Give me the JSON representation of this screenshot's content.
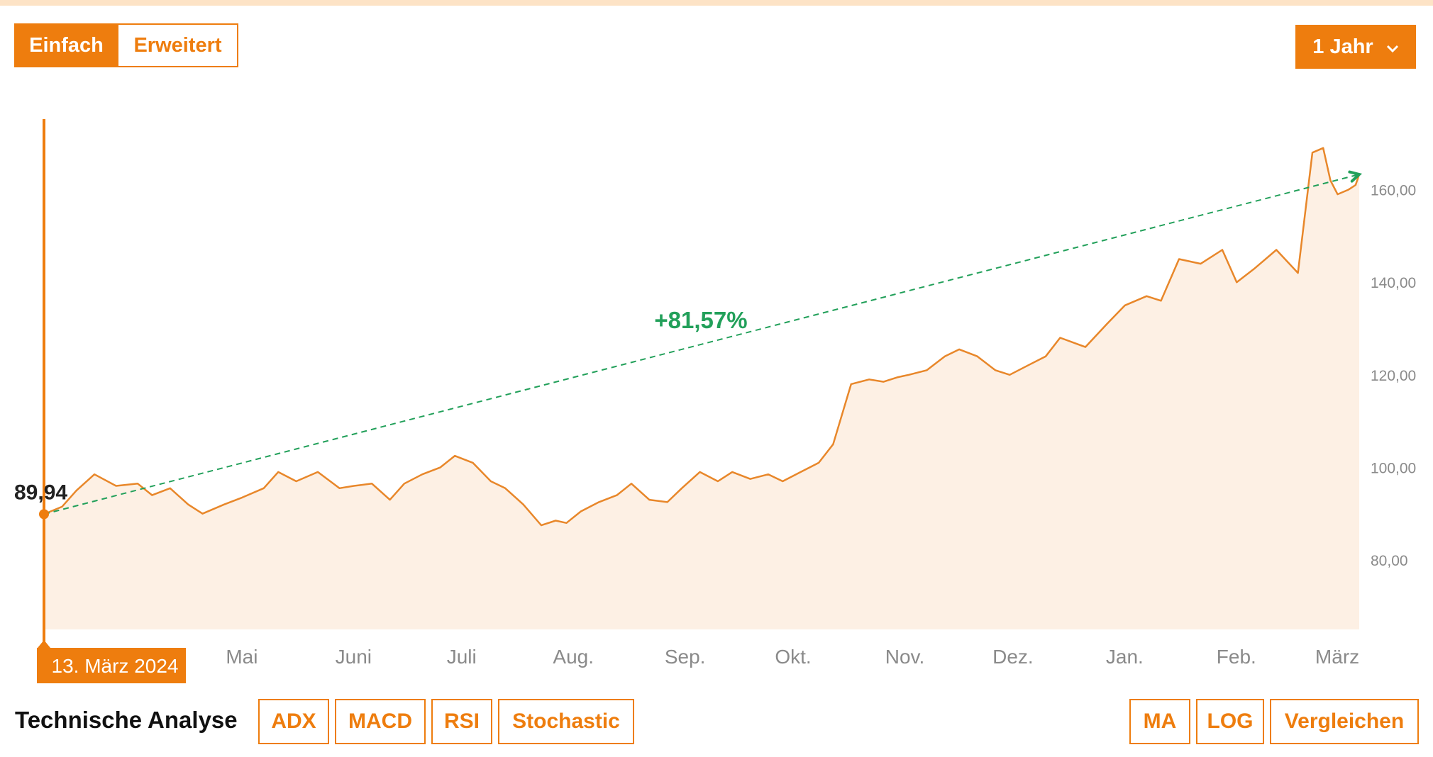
{
  "controls": {
    "mode_simple": "Einfach",
    "mode_advanced": "Erweitert",
    "period": "1 Jahr",
    "technical_label": "Technische Analyse",
    "indicators": [
      "ADX",
      "MACD",
      "RSI",
      "Stochastic"
    ],
    "tools": [
      "MA",
      "LOG",
      "Vergleichen"
    ]
  },
  "colors": {
    "accent": "#ee7d0e",
    "line": "#e8872a",
    "fill": "#fdf0e4",
    "positive": "#22a05a"
  },
  "chart_data": {
    "type": "area",
    "start_date": "13. März 2024",
    "start_value_label": "89,94",
    "change_label": "+81,57%",
    "y_ticks": [
      "80,00",
      "100,00",
      "120,00",
      "140,00",
      "160,00"
    ],
    "ylim": [
      65,
      178
    ],
    "x_month_labels": [
      "Mai",
      "Juni",
      "Juli",
      "Aug.",
      "Sep.",
      "Okt.",
      "Nov.",
      "Dez.",
      "Jan.",
      "Feb.",
      "März"
    ],
    "x": [
      "2024-03-13",
      "2024-03-18",
      "2024-03-22",
      "2024-03-27",
      "2024-04-02",
      "2024-04-08",
      "2024-04-12",
      "2024-04-17",
      "2024-04-22",
      "2024-04-26",
      "2024-05-02",
      "2024-05-07",
      "2024-05-13",
      "2024-05-17",
      "2024-05-22",
      "2024-05-28",
      "2024-06-03",
      "2024-06-07",
      "2024-06-12",
      "2024-06-17",
      "2024-06-21",
      "2024-06-26",
      "2024-07-01",
      "2024-07-05",
      "2024-07-10",
      "2024-07-15",
      "2024-07-19",
      "2024-07-24",
      "2024-07-29",
      "2024-08-02",
      "2024-08-05",
      "2024-08-09",
      "2024-08-14",
      "2024-08-19",
      "2024-08-23",
      "2024-08-28",
      "2024-09-02",
      "2024-09-06",
      "2024-09-11",
      "2024-09-16",
      "2024-09-20",
      "2024-09-25",
      "2024-09-30",
      "2024-10-04",
      "2024-10-09",
      "2024-10-14",
      "2024-10-18",
      "2024-10-23",
      "2024-10-28",
      "2024-11-01",
      "2024-11-05",
      "2024-11-08",
      "2024-11-13",
      "2024-11-18",
      "2024-11-22",
      "2024-11-27",
      "2024-12-02",
      "2024-12-06",
      "2024-12-11",
      "2024-12-16",
      "2024-12-20",
      "2024-12-27",
      "2025-01-02",
      "2025-01-07",
      "2025-01-13",
      "2025-01-17",
      "2025-01-22",
      "2025-01-28",
      "2025-02-03",
      "2025-02-07",
      "2025-02-12",
      "2025-02-18",
      "2025-02-24",
      "2025-02-28",
      "2025-03-03",
      "2025-03-05",
      "2025-03-07",
      "2025-03-10",
      "2025-03-12",
      "2025-03-13"
    ],
    "y": [
      89.9,
      91.5,
      95,
      98.5,
      96,
      96.5,
      94,
      95.5,
      92,
      90,
      92,
      93.5,
      95.5,
      99,
      97,
      99,
      95.5,
      96,
      96.5,
      93,
      96.5,
      98.5,
      100,
      102.5,
      101,
      97,
      95.5,
      92,
      87.5,
      88.5,
      88,
      90.5,
      92.5,
      94,
      96.5,
      93,
      92.5,
      95.5,
      99,
      97,
      99,
      97.5,
      98.5,
      97,
      99,
      101,
      105,
      118,
      119,
      118.5,
      119.5,
      120,
      121,
      124,
      125.5,
      124,
      121,
      120,
      122,
      124,
      128,
      126,
      131,
      135,
      137,
      136,
      145,
      144,
      147,
      140,
      143,
      147,
      142,
      168,
      169,
      162,
      159,
      160,
      161,
      163.3
    ],
    "annotations": [
      "+81,57%",
      "89,94",
      "13. März 2024"
    ]
  }
}
